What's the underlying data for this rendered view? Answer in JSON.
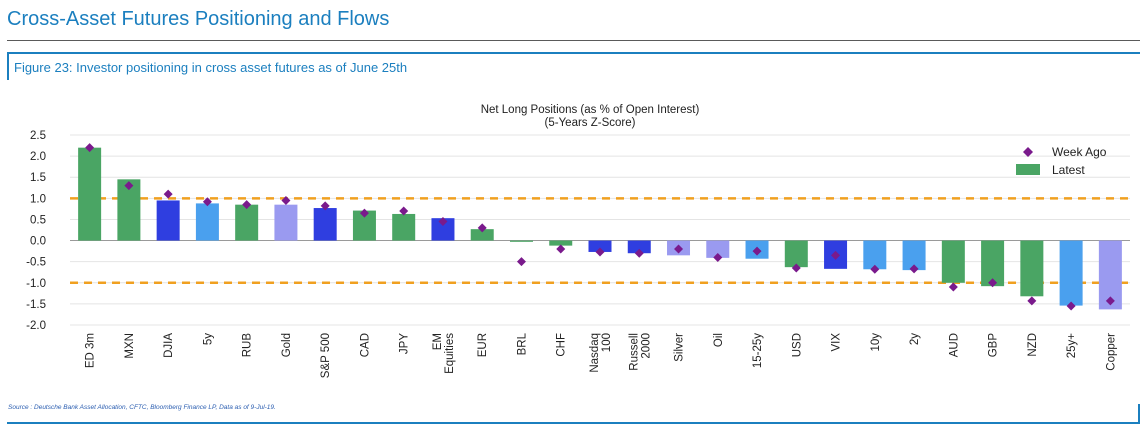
{
  "page": {
    "title": "Cross-Asset Futures Positioning and Flows",
    "figure_caption": "Figure 23: Investor positioning in cross asset futures as of June 25th",
    "source": "Source : Deutsche Bank Asset Allocation, CFTC, Bloomberg Finance LP, Data as of 9-Jul-19."
  },
  "chart_data": {
    "type": "bar",
    "title_line1": "Net Long Positions (as % of Open Interest)",
    "title_line2": "(5-Years Z-Score)",
    "ylim": [
      -2.0,
      2.5
    ],
    "yticks": [
      "2.5",
      "2.0",
      "1.5",
      "1.0",
      "0.5",
      "0.0",
      "-0.5",
      "-1.0",
      "-1.5",
      "-2.0"
    ],
    "ytick_values": [
      2.5,
      2.0,
      1.5,
      1.0,
      0.5,
      0.0,
      -0.5,
      -1.0,
      -1.5,
      -2.0
    ],
    "reference_lines": [
      1.0,
      -1.0
    ],
    "categories": [
      "ED 3m",
      "MXN",
      "DJIA",
      "5y",
      "RUB",
      "Gold",
      "S&P 500",
      "CAD",
      "JPY",
      "EM Equities",
      "EUR",
      "BRL",
      "CHF",
      "Nasdaq 100",
      "Russell 2000",
      "Silver",
      "Oil",
      "15-25y",
      "USD",
      "VIX",
      "10y",
      "2y",
      "AUD",
      "GBP",
      "NZD",
      "25y+",
      "Copper"
    ],
    "category_lines": [
      [
        "ED 3m"
      ],
      [
        "MXN"
      ],
      [
        "DJIA"
      ],
      [
        "5y"
      ],
      [
        "RUB"
      ],
      [
        "Gold"
      ],
      [
        "S&P 500"
      ],
      [
        "CAD"
      ],
      [
        "JPY"
      ],
      [
        "EM",
        "Equities"
      ],
      [
        "EUR"
      ],
      [
        "BRL"
      ],
      [
        "CHF"
      ],
      [
        "Nasdaq",
        "100"
      ],
      [
        "Russell",
        "2000"
      ],
      [
        "Silver"
      ],
      [
        "Oil"
      ],
      [
        "15-25y"
      ],
      [
        "USD"
      ],
      [
        "VIX"
      ],
      [
        "10y"
      ],
      [
        "2y"
      ],
      [
        "AUD"
      ],
      [
        "GBP"
      ],
      [
        "NZD"
      ],
      [
        "25y+"
      ],
      [
        "Copper"
      ]
    ],
    "series": [
      {
        "name": "Latest",
        "values": [
          2.2,
          1.45,
          0.95,
          0.88,
          0.85,
          0.85,
          0.77,
          0.71,
          0.63,
          0.53,
          0.27,
          -0.03,
          -0.12,
          -0.27,
          -0.3,
          -0.35,
          -0.41,
          -0.43,
          -0.63,
          -0.67,
          -0.68,
          -0.7,
          -1.0,
          -1.08,
          -1.32,
          -1.54,
          -1.63
        ]
      },
      {
        "name": "Week Ago",
        "values": [
          2.2,
          1.3,
          1.1,
          0.92,
          0.85,
          0.95,
          0.82,
          0.65,
          0.7,
          0.45,
          0.3,
          -0.5,
          -0.2,
          -0.27,
          -0.3,
          -0.2,
          -0.4,
          -0.25,
          -0.65,
          -0.35,
          -0.68,
          -0.67,
          -1.1,
          -1.0,
          -1.43,
          -1.55,
          -1.43
        ]
      }
    ],
    "bar_colors": [
      "#4aa564",
      "#4aa564",
      "#2f3ee0",
      "#4aa0ee",
      "#4aa564",
      "#9a9af0",
      "#2f3ee0",
      "#4aa564",
      "#4aa564",
      "#2f3ee0",
      "#4aa564",
      "#4aa564",
      "#4aa564",
      "#2f3ee0",
      "#2f3ee0",
      "#9a9af0",
      "#9a9af0",
      "#4aa0ee",
      "#4aa564",
      "#2f3ee0",
      "#4aa0ee",
      "#4aa0ee",
      "#4aa564",
      "#4aa564",
      "#4aa564",
      "#4aa0ee",
      "#9a9af0"
    ],
    "marker_color": "#7a1a8c",
    "reference_line_color": "#f0a020",
    "legend": {
      "position": "top-right",
      "week_ago_label": "Week Ago",
      "latest_label": "Latest",
      "latest_color": "#4aa564"
    },
    "grid": true
  }
}
